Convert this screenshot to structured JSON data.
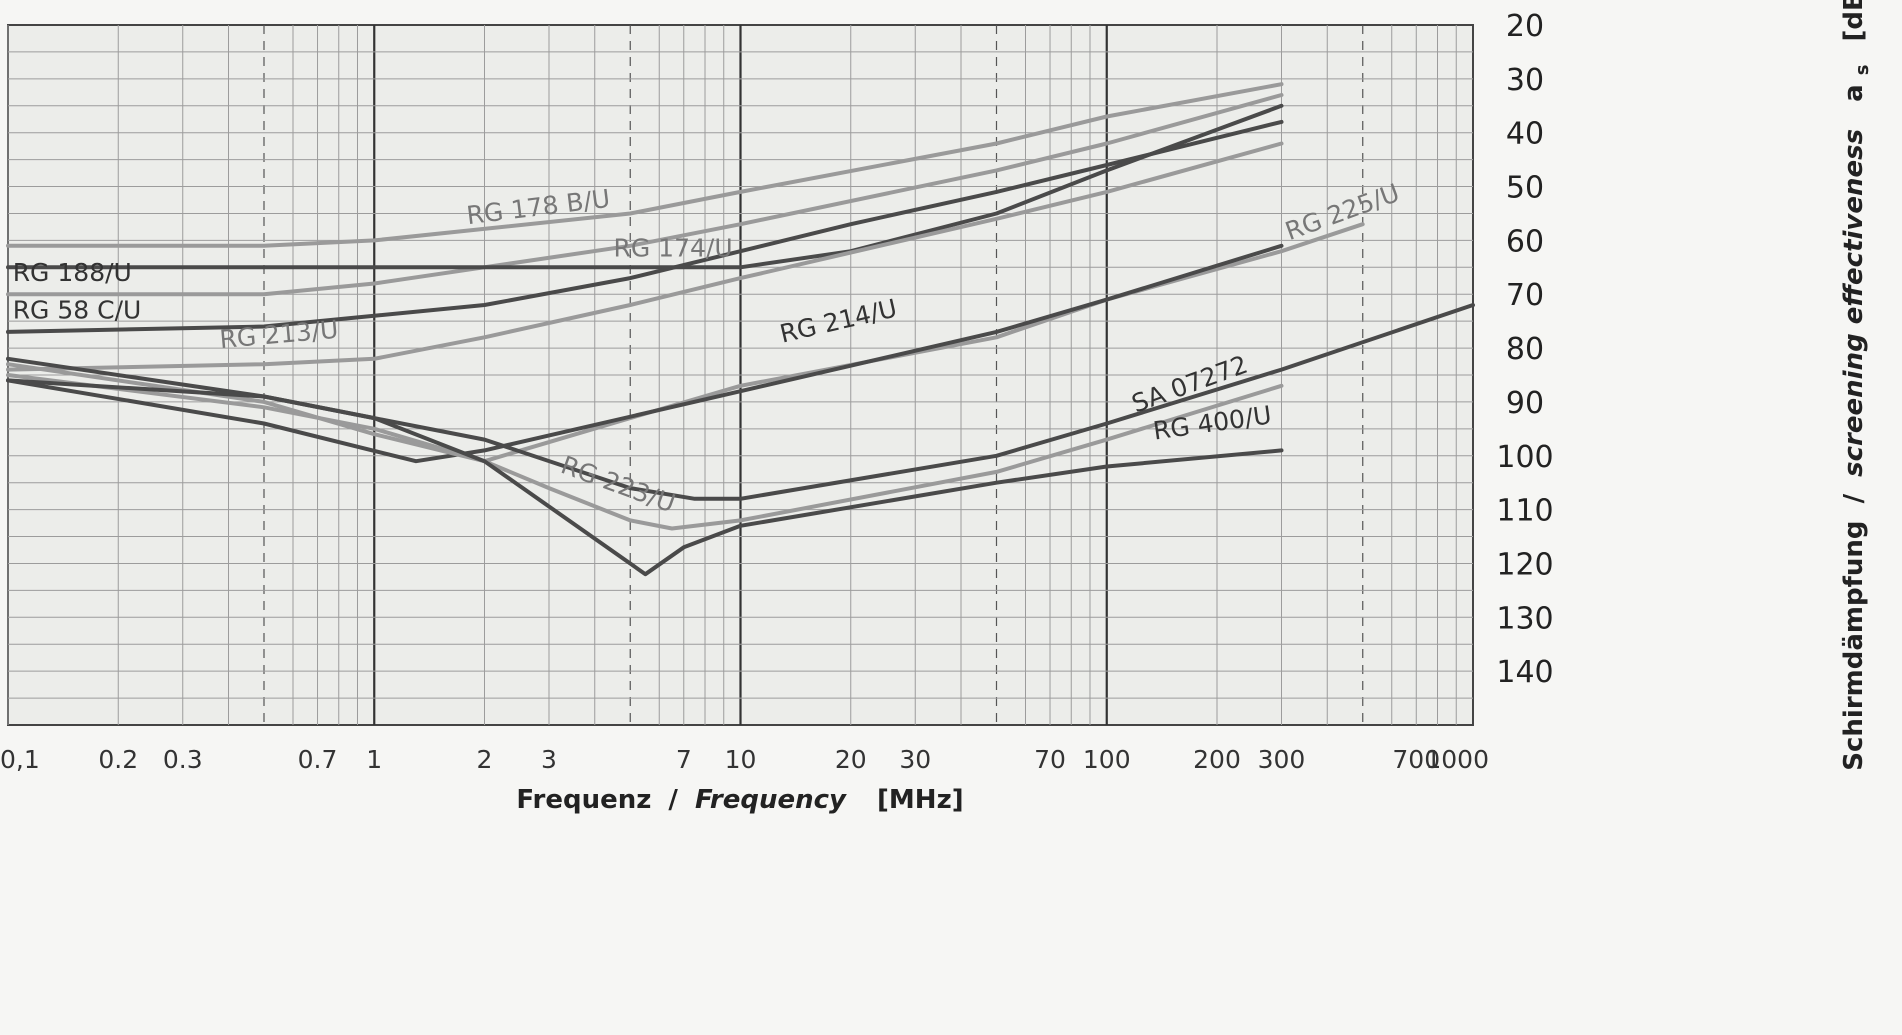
{
  "chart_data": {
    "type": "line",
    "xscale": "log",
    "xlim": [
      0.1,
      1000
    ],
    "ylim": [
      20,
      150
    ],
    "y_inverted": true,
    "grid": true,
    "xlabel": {
      "de": "Frequenz",
      "sep": "/",
      "en": "Frequency",
      "unit": "[MHz]"
    },
    "ylabel": {
      "de": "Schirmdämpfung",
      "sep": "/",
      "en": "screening effectiveness",
      "symbol": "a",
      "subscript": "s",
      "unit": "[dB]"
    },
    "x_ticks": [
      {
        "v": 0.1,
        "label": "0,1"
      },
      {
        "v": 0.2,
        "label": "0.2"
      },
      {
        "v": 0.3,
        "label": "0.3"
      },
      {
        "v": 0.7,
        "label": "0.7"
      },
      {
        "v": 1,
        "label": "1"
      },
      {
        "v": 2,
        "label": "2"
      },
      {
        "v": 3,
        "label": "3"
      },
      {
        "v": 7,
        "label": "7"
      },
      {
        "v": 10,
        "label": "10"
      },
      {
        "v": 20,
        "label": "20"
      },
      {
        "v": 30,
        "label": "30"
      },
      {
        "v": 70,
        "label": "70"
      },
      {
        "v": 100,
        "label": "100"
      },
      {
        "v": 200,
        "label": "200"
      },
      {
        "v": 300,
        "label": "300"
      },
      {
        "v": 700,
        "label": "700"
      },
      {
        "v": 1000,
        "label": "1000"
      }
    ],
    "y_ticks": [
      20,
      30,
      40,
      50,
      60,
      70,
      80,
      90,
      100,
      110,
      120,
      130,
      140
    ],
    "series": [
      {
        "name": "RG 178 B/U",
        "color": "#9a9a9a",
        "points": [
          [
            0.1,
            61
          ],
          [
            0.5,
            61
          ],
          [
            1,
            60
          ],
          [
            5,
            55
          ],
          [
            10,
            51
          ],
          [
            50,
            42
          ],
          [
            100,
            37
          ],
          [
            300,
            31
          ]
        ],
        "label": {
          "x": 1.8,
          "y": 57,
          "angle": -7,
          "anchor": "start"
        }
      },
      {
        "name": "RG 174/U",
        "color": "#9a9a9a",
        "points": [
          [
            0.1,
            70
          ],
          [
            0.5,
            70
          ],
          [
            1,
            68
          ],
          [
            5,
            61
          ],
          [
            10,
            57
          ],
          [
            50,
            47
          ],
          [
            100,
            42
          ],
          [
            300,
            33
          ]
        ],
        "label": {
          "x": 4.5,
          "y": 63,
          "angle": 0,
          "anchor": "start"
        }
      },
      {
        "name": "RG 188/U",
        "color": "#4a4a4a",
        "points": [
          [
            0.1,
            65
          ],
          [
            1,
            65
          ],
          [
            5,
            65
          ],
          [
            10,
            65
          ],
          [
            20,
            62
          ],
          [
            50,
            55
          ],
          [
            100,
            47
          ],
          [
            300,
            35
          ]
        ],
        "label": {
          "x": 0.103,
          "y": 67.5,
          "angle": 0,
          "anchor": "start"
        }
      },
      {
        "name": "RG 58 C/U",
        "color": "#4a4a4a",
        "points": [
          [
            0.1,
            77
          ],
          [
            0.5,
            76
          ],
          [
            1,
            74
          ],
          [
            2,
            72
          ],
          [
            5,
            67
          ],
          [
            10,
            62
          ],
          [
            20,
            57
          ],
          [
            50,
            51
          ],
          [
            100,
            46
          ],
          [
            300,
            38
          ]
        ],
        "label": {
          "x": 0.103,
          "y": 74.5,
          "angle": 0,
          "anchor": "start"
        }
      },
      {
        "name": "RG 213/U",
        "color": "#9a9a9a",
        "points": [
          [
            0.1,
            84
          ],
          [
            0.5,
            83
          ],
          [
            1,
            82
          ],
          [
            2,
            78
          ],
          [
            5,
            72
          ],
          [
            10,
            67
          ],
          [
            50,
            56
          ],
          [
            100,
            51
          ],
          [
            300,
            42
          ]
        ],
        "label": {
          "x": 0.38,
          "y": 80,
          "angle": -5,
          "anchor": "start"
        }
      },
      {
        "name": "RG 225/U",
        "color": "#9a9a9a",
        "points": [
          [
            0.1,
            85
          ],
          [
            0.5,
            91
          ],
          [
            1,
            95
          ],
          [
            2,
            101
          ],
          [
            5,
            93
          ],
          [
            10,
            87
          ],
          [
            50,
            78
          ],
          [
            100,
            71
          ],
          [
            300,
            62
          ],
          [
            500,
            57
          ]
        ],
        "label": {
          "x": 315,
          "y": 60,
          "angle": -20,
          "anchor": "start"
        }
      },
      {
        "name": "RG 214/U",
        "color": "#4a4a4a",
        "points": [
          [
            0.1,
            82
          ],
          [
            0.5,
            89
          ],
          [
            1,
            93
          ],
          [
            2,
            97
          ],
          [
            5,
            106
          ],
          [
            7.5,
            108
          ],
          [
            10,
            108
          ],
          [
            50,
            100
          ],
          [
            100,
            94
          ],
          [
            300,
            84
          ],
          [
            1000,
            72
          ]
        ],
        "label": {
          "x": 13,
          "y": 79,
          "angle": -13,
          "anchor": "start"
        }
      },
      {
        "name": "SA 07272",
        "color": "#4a4a4a",
        "points": [
          [
            0.1,
            86
          ],
          [
            0.5,
            94
          ],
          [
            1.3,
            101
          ],
          [
            2,
            99
          ],
          [
            10,
            88
          ],
          [
            50,
            77
          ],
          [
            100,
            71
          ],
          [
            300,
            61
          ]
        ],
        "label": {
          "x": 120,
          "y": 92,
          "angle": -20,
          "anchor": "start"
        }
      },
      {
        "name": "RG 223/U",
        "color": "#9a9a9a",
        "points": [
          [
            0.1,
            83
          ],
          [
            0.5,
            90
          ],
          [
            1,
            96
          ],
          [
            2,
            101
          ],
          [
            3,
            106
          ],
          [
            5,
            112
          ],
          [
            6.5,
            113.5
          ],
          [
            10,
            112
          ],
          [
            50,
            103
          ],
          [
            100,
            97
          ],
          [
            300,
            87
          ]
        ],
        "label": {
          "x": 3.2,
          "y": 103,
          "angle": 20,
          "anchor": "start"
        }
      },
      {
        "name": "RG 400/U",
        "color": "#4a4a4a",
        "points": [
          [
            0.1,
            86
          ],
          [
            0.5,
            89
          ],
          [
            1,
            93
          ],
          [
            2,
            101
          ],
          [
            5.5,
            122
          ],
          [
            7,
            117
          ],
          [
            10,
            113
          ],
          [
            50,
            105
          ],
          [
            100,
            102
          ],
          [
            300,
            99
          ]
        ],
        "label": {
          "x": 135,
          "y": 97,
          "angle": -8,
          "anchor": "start"
        }
      }
    ]
  }
}
